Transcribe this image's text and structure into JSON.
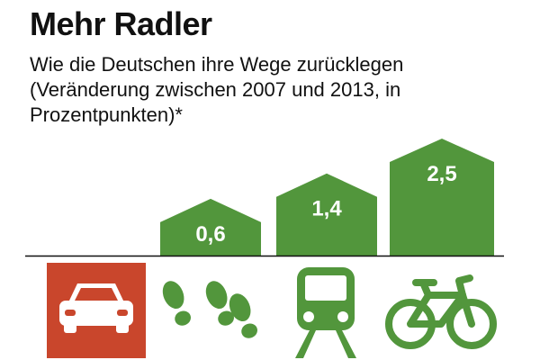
{
  "colors": {
    "green": "#52963c",
    "red": "#c9462c",
    "white": "#ffffff",
    "text": "#111111"
  },
  "chart_data": {
    "type": "bar",
    "title": "Mehr Radler",
    "subtitle": "Wie die Deutschen ihre Wege zurücklegen (Veränderung zwischen 2007 und 2013, in Prozentpunkten)*",
    "unit": "Prozentpunkte",
    "ylim": [
      0,
      2.5
    ],
    "categories": [
      {
        "name": "Auto",
        "icon": "car-icon",
        "value": null,
        "label": "",
        "color": "#c9462c"
      },
      {
        "name": "zu Fuß",
        "icon": "footprints-icon",
        "value": 0.6,
        "label": "0,6",
        "color": "#52963c"
      },
      {
        "name": "Bahn",
        "icon": "train-icon",
        "value": 1.4,
        "label": "1,4",
        "color": "#52963c"
      },
      {
        "name": "Fahrrad",
        "icon": "bicycle-icon",
        "value": 2.5,
        "label": "2,5",
        "color": "#52963c"
      }
    ]
  }
}
